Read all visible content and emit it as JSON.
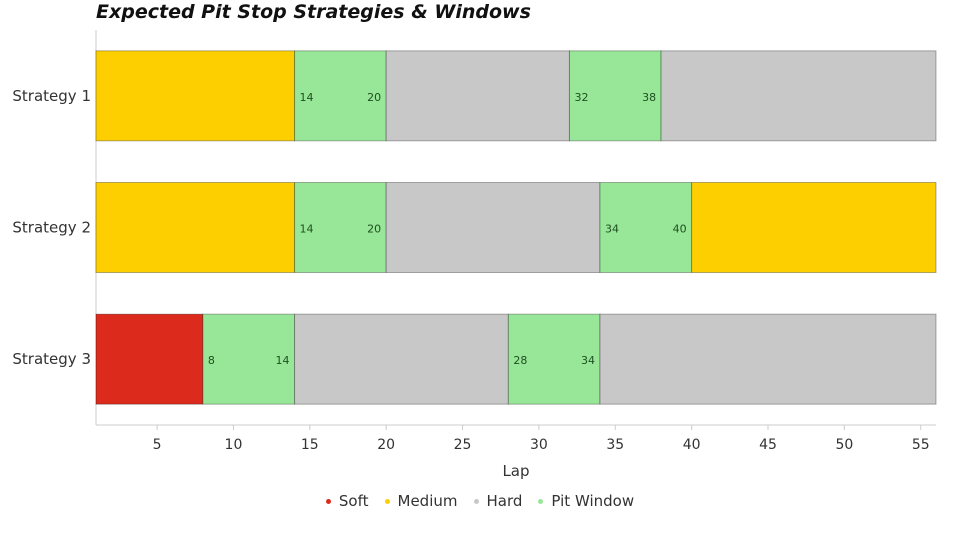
{
  "chart_data": {
    "type": "bar",
    "orientation": "horizontal-stacked",
    "title": "Expected Pit Stop Strategies & Windows",
    "xlabel": "Lap",
    "ylabel": "",
    "xlim": [
      1,
      56
    ],
    "xticks": [
      5,
      10,
      15,
      20,
      25,
      30,
      35,
      40,
      45,
      50,
      55
    ],
    "categories": [
      "Strategy 1",
      "Strategy 2",
      "Strategy 3"
    ],
    "colors": {
      "Soft": "#dc2a1d",
      "Medium": "#fdcf00",
      "Hard": "#c8c8c8",
      "Pit Window": "#98e698"
    },
    "legend": [
      "Soft",
      "Medium",
      "Hard",
      "Pit Window"
    ],
    "legend_position": "bottom-center",
    "strategies": [
      {
        "name": "Strategy 1",
        "segments": [
          {
            "compound": "Medium",
            "start": 1,
            "end": 14
          },
          {
            "compound": "Pit Window",
            "start": 14,
            "end": 20
          },
          {
            "compound": "Hard",
            "start": 20,
            "end": 32
          },
          {
            "compound": "Pit Window",
            "start": 32,
            "end": 38
          },
          {
            "compound": "Hard",
            "start": 38,
            "end": 56
          }
        ]
      },
      {
        "name": "Strategy 2",
        "segments": [
          {
            "compound": "Medium",
            "start": 1,
            "end": 14
          },
          {
            "compound": "Pit Window",
            "start": 14,
            "end": 20
          },
          {
            "compound": "Hard",
            "start": 20,
            "end": 34
          },
          {
            "compound": "Pit Window",
            "start": 34,
            "end": 40
          },
          {
            "compound": "Medium",
            "start": 40,
            "end": 56
          }
        ]
      },
      {
        "name": "Strategy 3",
        "segments": [
          {
            "compound": "Soft",
            "start": 1,
            "end": 8
          },
          {
            "compound": "Pit Window",
            "start": 8,
            "end": 14
          },
          {
            "compound": "Hard",
            "start": 14,
            "end": 28
          },
          {
            "compound": "Pit Window",
            "start": 28,
            "end": 34
          },
          {
            "compound": "Hard",
            "start": 34,
            "end": 56
          }
        ]
      }
    ]
  }
}
